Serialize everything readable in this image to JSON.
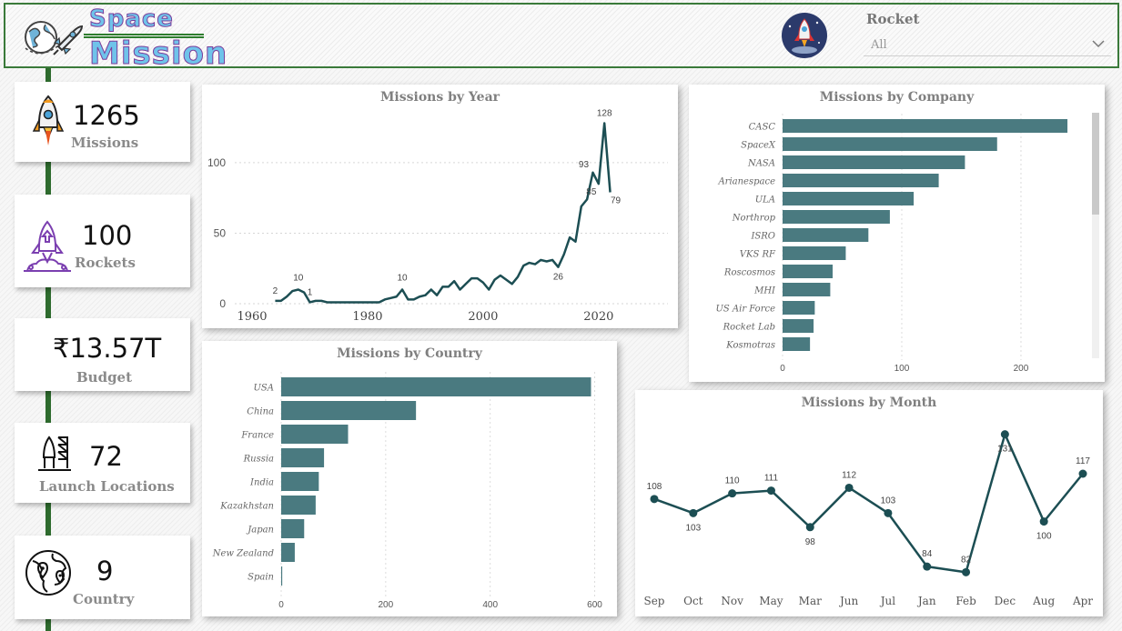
{
  "header": {
    "title_line1": "Space",
    "title_line2": "Mission",
    "logo_icon": "globe-rocket-icon",
    "badge_icon": "rocket-badge-icon",
    "slicer": {
      "label": "Rocket",
      "value": "All"
    }
  },
  "kpis": [
    {
      "id": "missions",
      "value": "1265",
      "label": "Missions",
      "icon": "rocket-icon"
    },
    {
      "id": "rockets",
      "value": "100",
      "label": "Rockets",
      "icon": "rocket-launch-icon"
    },
    {
      "id": "budget",
      "value": "₹13.57T",
      "label": "Budget",
      "icon": ""
    },
    {
      "id": "locations",
      "value": "72",
      "label": "Launch Locations",
      "icon": "launch-pad-icon"
    },
    {
      "id": "country",
      "value": "9",
      "label": "Country",
      "icon": "world-map-icon"
    }
  ],
  "colors": {
    "bar": "#4a7a80",
    "line": "#1c4e53",
    "frame": "#3a7a3a",
    "timeline": "#2e6b2e"
  },
  "chart_data": [
    {
      "id": "year",
      "type": "line",
      "title": "Missions by Year",
      "x": [
        1964,
        1965,
        1966,
        1967,
        1968,
        1969,
        1970,
        1971,
        1972,
        1973,
        1974,
        1975,
        1976,
        1977,
        1978,
        1979,
        1980,
        1981,
        1982,
        1983,
        1984,
        1985,
        1986,
        1987,
        1988,
        1989,
        1990,
        1991,
        1992,
        1993,
        1994,
        1995,
        1996,
        1997,
        1998,
        1999,
        2000,
        2001,
        2002,
        2003,
        2004,
        2005,
        2006,
        2007,
        2008,
        2009,
        2010,
        2011,
        2012,
        2013,
        2014,
        2015,
        2016,
        2017,
        2018,
        2019,
        2020,
        2021,
        2022
      ],
      "values": [
        2,
        2,
        5,
        9,
        10,
        8,
        1,
        2,
        2,
        1,
        1,
        1,
        1,
        1,
        1,
        1,
        1,
        1,
        1,
        3,
        4,
        5,
        10,
        3,
        3,
        5,
        6,
        10,
        6,
        12,
        12,
        16,
        10,
        14,
        18,
        18,
        15,
        10,
        17,
        20,
        17,
        14,
        19,
        27,
        29,
        28,
        31,
        30,
        31,
        26,
        35,
        47,
        44,
        69,
        74,
        93,
        85,
        128,
        79
      ],
      "point_labels": [
        {
          "x": 1964,
          "text": "2"
        },
        {
          "x": 1968,
          "text": "10"
        },
        {
          "x": 1970,
          "text": "1"
        },
        {
          "x": 1986,
          "text": "10"
        },
        {
          "x": 2013,
          "text": "26"
        },
        {
          "x": 2019,
          "text": "93"
        },
        {
          "x": 2020,
          "text": "85"
        },
        {
          "x": 2021,
          "text": "128"
        },
        {
          "x": 2022,
          "text": "79"
        }
      ],
      "xlim": [
        1957,
        2032
      ],
      "ylim": [
        0,
        138
      ],
      "xticks": [
        1960,
        1980,
        2000,
        2020
      ],
      "yticks": [
        0,
        50,
        100
      ],
      "grid": true
    },
    {
      "id": "company",
      "type": "bar",
      "orientation": "horizontal",
      "title": "Missions by Company",
      "categories": [
        "CASC",
        "SpaceX",
        "NASA",
        "Arianespace",
        "ULA",
        "Northrop",
        "ISRO",
        "VKS RF",
        "Roscosmos",
        "MHI",
        "US Air Force",
        "Rocket Lab",
        "Kosmotras"
      ],
      "values": [
        239,
        180,
        153,
        131,
        110,
        90,
        72,
        53,
        42,
        40,
        27,
        26,
        23
      ],
      "xlim": [
        0,
        255
      ],
      "xticks": [
        0,
        100,
        200
      ],
      "grid": true
    },
    {
      "id": "country",
      "type": "bar",
      "orientation": "horizontal",
      "title": "Missions by Country",
      "categories": [
        "USA",
        "China",
        "France",
        "Russia",
        "India",
        "Kazakhstan",
        "Japan",
        "New Zealand",
        "Spain"
      ],
      "values": [
        593,
        258,
        128,
        82,
        72,
        66,
        44,
        26,
        2
      ],
      "xlim": [
        0,
        620
      ],
      "xticks": [
        0,
        200,
        400,
        600
      ],
      "grid": true
    },
    {
      "id": "month",
      "type": "line",
      "title": "Missions by Month",
      "categories": [
        "Sep",
        "Oct",
        "Nov",
        "May",
        "Mar",
        "Jun",
        "Jul",
        "Jan",
        "Feb",
        "Dec",
        "Aug",
        "Apr"
      ],
      "values": [
        108,
        103,
        110,
        111,
        98,
        112,
        103,
        84,
        82,
        131,
        100,
        117
      ],
      "label_positions": [
        "above",
        "below",
        "above",
        "above",
        "below",
        "above",
        "above",
        "above",
        "above",
        "below",
        "below",
        "above"
      ],
      "ylim": [
        75,
        138
      ],
      "markers": true,
      "grid": false
    }
  ]
}
